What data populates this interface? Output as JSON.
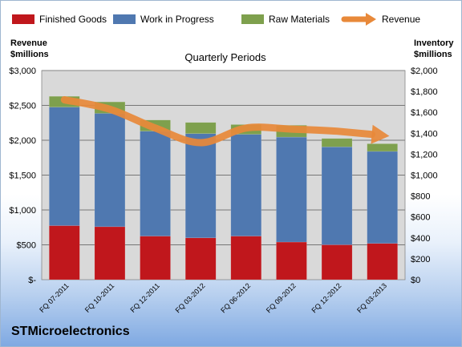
{
  "chart_data": {
    "type": "bar",
    "stacked": true,
    "subtitle": "Quarterly Periods",
    "categories": [
      "FQ 07-2011",
      "FQ 10-2011",
      "FQ 12-2011",
      "FQ 03-2012",
      "FQ 06-2012",
      "FQ 09-2012",
      "FQ 12-2012",
      "FQ 03-2013"
    ],
    "series": [
      {
        "name": "Finished Goods",
        "color": "#c0171c",
        "axis": "left",
        "values": [
          775,
          760,
          625,
          600,
          625,
          540,
          500,
          520
        ]
      },
      {
        "name": "Work in Progress",
        "color": "#4f78b0",
        "axis": "left",
        "values": [
          1700,
          1625,
          1505,
          1495,
          1460,
          1505,
          1405,
          1320
        ]
      },
      {
        "name": "Raw Materials",
        "color": "#7ea04d",
        "axis": "left",
        "values": [
          155,
          165,
          160,
          160,
          140,
          170,
          120,
          110
        ]
      },
      {
        "name": "Revenue",
        "color": "#e8893a",
        "type": "line-arrow",
        "axis": "right",
        "values": [
          1720,
          1630,
          1450,
          1310,
          1450,
          1440,
          1420,
          1380
        ]
      }
    ],
    "left_axis": {
      "title_line1": "Revenue",
      "title_line2": "$millions",
      "min": 0,
      "max": 3000,
      "step": 500,
      "tick_labels": [
        "$-",
        "$500",
        "$1,000",
        "$1,500",
        "$2,000",
        "$2,500",
        "$3,000"
      ]
    },
    "right_axis": {
      "title_line1": "Inventory",
      "title_line2": "$millions",
      "min": 0,
      "max": 2000,
      "step": 200,
      "tick_labels": [
        "$0",
        "$200",
        "$400",
        "$600",
        "$800",
        "$1,000",
        "$1,200",
        "$1,400",
        "$1,600",
        "$1,800",
        "$2,000"
      ]
    },
    "grid": true,
    "legend_position": "top",
    "plot_background": "#d9d9d9"
  },
  "company": "STMicroelectronics"
}
